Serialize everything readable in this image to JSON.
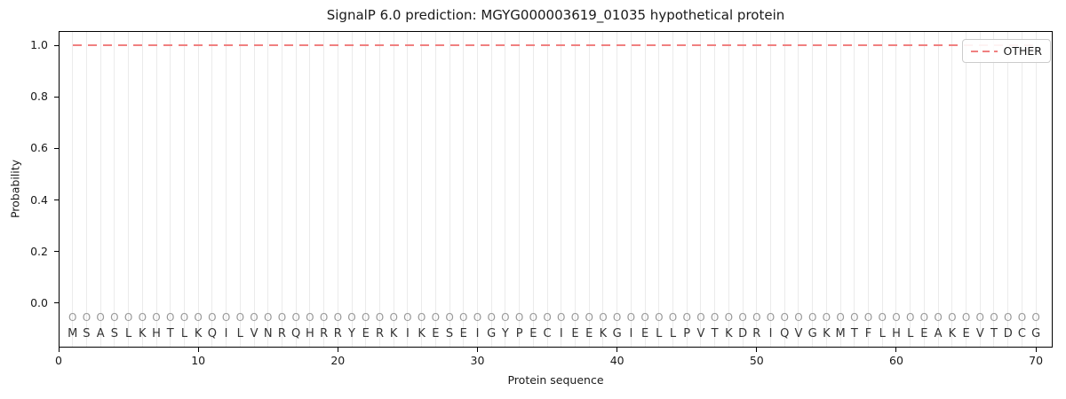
{
  "chart_data": {
    "type": "line",
    "title": "SignalP 6.0 prediction: MGYG000003619_01035 hypothetical protein",
    "xlabel": "Protein sequence",
    "ylabel": "Probability",
    "x_ticks": [
      0,
      10,
      20,
      30,
      40,
      50,
      60,
      70
    ],
    "y_ticks": [
      0.0,
      0.2,
      0.4,
      0.6,
      0.8,
      1.0
    ],
    "xlim": [
      0,
      71.2
    ],
    "ylim": [
      -0.172,
      1.055
    ],
    "grid": "vertical gridline at every residue position 1-70",
    "legend": {
      "position": "upper right",
      "entries": [
        {
          "label": "OTHER",
          "style": "dashed",
          "color": "#f08080"
        }
      ]
    },
    "series": [
      {
        "name": "OTHER",
        "color": "#f08080",
        "line_style": "dashed",
        "x_start": 1,
        "x_end": 70,
        "y_constant": 1.0,
        "note": "constant probability 1.0 across residues 1-70"
      }
    ],
    "sequence": {
      "residues": "MSASLKHTLKQILVNRQHRRYERKIKESEIGYPECIEEKGIELLPVTKDRIQVGKMTFLHLEAKEVTDCG",
      "length": 70,
      "marker_glyph": "O",
      "marker_y": -0.055,
      "letter_y": -0.12
    },
    "colors": {
      "line": "#f08080",
      "grid": "#ebebeb",
      "marker": "#9a9a9a",
      "letter": "#333333",
      "spine": "#000000",
      "legend_border": "#cccccc"
    }
  }
}
